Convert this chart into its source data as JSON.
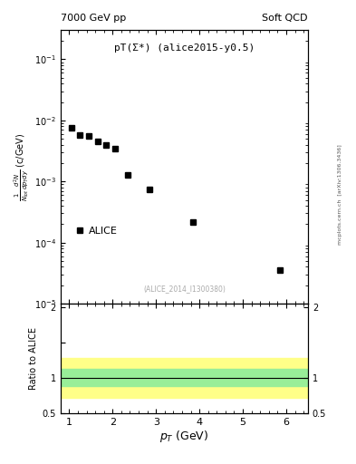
{
  "title_left": "7000 GeV pp",
  "title_right": "Soft QCD",
  "annotation": "pT(Σ*) (alice2015-y0.5)",
  "ref_label": "(ALICE_2014_I1300380)",
  "ylabel_main": "$\\frac{1}{N_{tot}} \\frac{d^2N}{dp_{T}dy}$ (c/GeV)",
  "xlabel": "$p_{T}$ (GeV)",
  "ylabel_ratio": "Ratio to ALICE",
  "data_x": [
    1.05,
    1.25,
    1.45,
    1.65,
    1.85,
    2.05,
    2.35,
    2.85,
    3.85,
    5.85
  ],
  "data_y": [
    0.0075,
    0.0058,
    0.0055,
    0.0045,
    0.004,
    0.0035,
    0.0013,
    0.00075,
    0.00022,
    3.5e-05
  ],
  "marker": "s",
  "marker_color": "black",
  "marker_size": 4,
  "xlim": [
    0.8,
    6.5
  ],
  "ylim_main": [
    1e-05,
    0.3
  ],
  "ylim_ratio": [
    0.5,
    2.05
  ],
  "ratio_line": 1.0,
  "green_band_low": 0.88,
  "green_band_high": 1.12,
  "yellow_band_low": 0.72,
  "yellow_band_high": 1.28,
  "green_color": "#98ee98",
  "yellow_color": "#ffff88",
  "legend_label": "ALICE",
  "right_label": "[arXiv:1306.3436]",
  "mcplots_label": "mcplots.cern.ch",
  "side_text": "mcplots.cern.ch  [arXiv:1306.3436]"
}
